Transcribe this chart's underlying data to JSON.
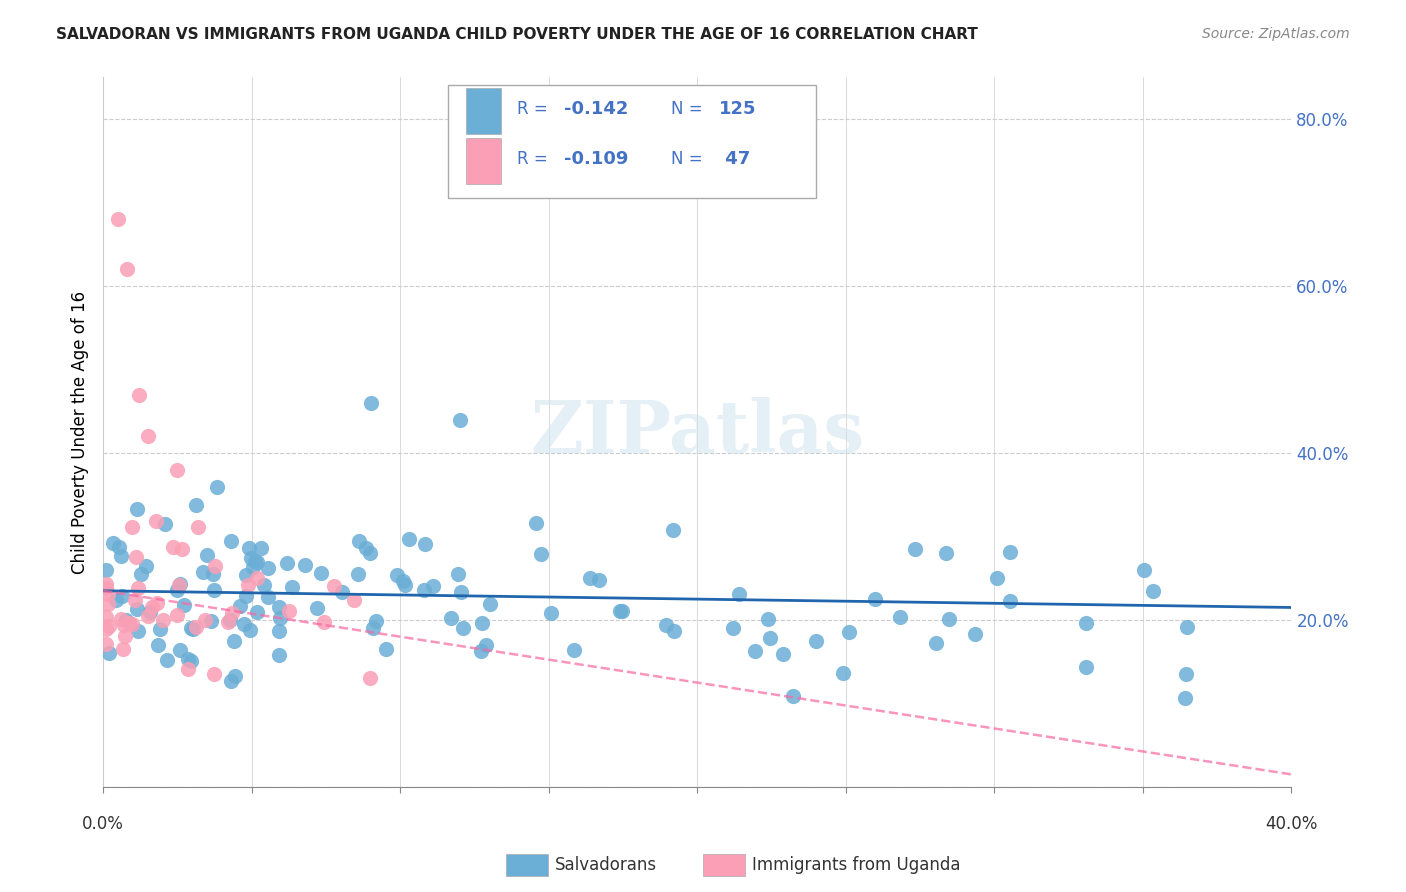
{
  "title": "SALVADORAN VS IMMIGRANTS FROM UGANDA CHILD POVERTY UNDER THE AGE OF 16 CORRELATION CHART",
  "source": "Source: ZipAtlas.com",
  "ylabel": "Child Poverty Under the Age of 16",
  "color_blue": "#6baed6",
  "color_pink": "#fa9fb5",
  "color_blue_line": "#2166ac",
  "color_pink_line": "#f768a1",
  "watermark": "ZIPatlas",
  "blue_slope": -0.05,
  "blue_intercept": 0.235,
  "pink_slope": -0.55,
  "pink_intercept": 0.235
}
